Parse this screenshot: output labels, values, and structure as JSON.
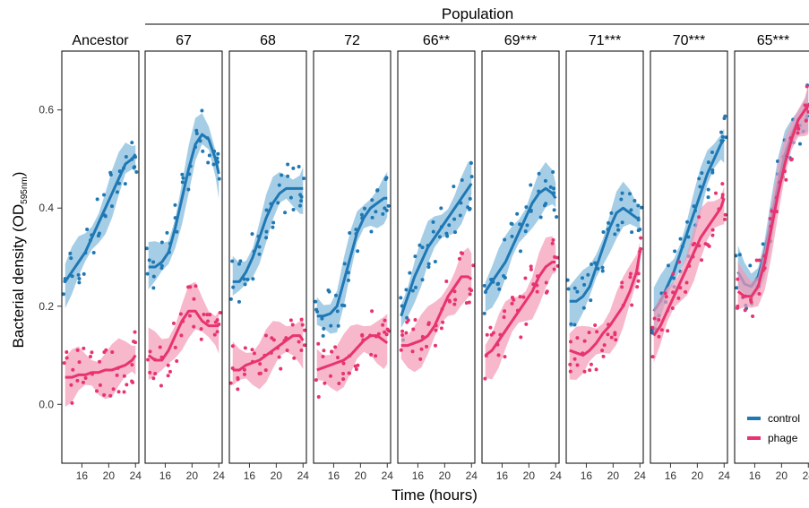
{
  "chart_data": {
    "type": "line",
    "title": "Population",
    "xlabel": "Time (hours)",
    "ylabel_main": "Bacterial density (OD",
    "ylabel_sub": "595nm",
    "ylabel_close": ")",
    "xlim": [
      13,
      24.5
    ],
    "ylim": [
      -0.12,
      0.72
    ],
    "xticks": [
      16,
      20,
      24
    ],
    "yticks": [
      "0.0",
      "0.2",
      "0.4",
      "0.6"
    ],
    "ytick_values": [
      0,
      0.2,
      0.4,
      0.6
    ],
    "colors": {
      "control": "#1f78b4",
      "phage": "#e8336f",
      "control_band": "#7fb9dc",
      "phage_band": "#f39ab6"
    },
    "legend": {
      "position": "bottom-right",
      "entries": [
        "control",
        "phage"
      ]
    },
    "x": [
      13.5,
      14.5,
      15.5,
      16.5,
      17.5,
      18.5,
      19.5,
      20.5,
      21.5,
      22.5,
      23.5,
      24
    ],
    "panels": [
      {
        "label": "Ancestor",
        "control": [
          0.25,
          0.27,
          0.29,
          0.31,
          0.34,
          0.37,
          0.4,
          0.43,
          0.46,
          0.49,
          0.5,
          0.51
        ],
        "phage": [
          0.055,
          0.055,
          0.06,
          0.06,
          0.065,
          0.065,
          0.07,
          0.07,
          0.075,
          0.08,
          0.09,
          0.1
        ]
      },
      {
        "label": "67",
        "control": [
          0.28,
          0.28,
          0.29,
          0.31,
          0.36,
          0.42,
          0.48,
          0.53,
          0.55,
          0.54,
          0.5,
          0.47
        ],
        "phage": [
          0.1,
          0.09,
          0.09,
          0.11,
          0.14,
          0.17,
          0.19,
          0.19,
          0.17,
          0.16,
          0.16,
          0.16
        ]
      },
      {
        "label": "68",
        "control": [
          0.25,
          0.25,
          0.27,
          0.3,
          0.34,
          0.38,
          0.41,
          0.43,
          0.44,
          0.44,
          0.44,
          0.44
        ],
        "phage": [
          0.07,
          0.07,
          0.08,
          0.085,
          0.09,
          0.1,
          0.11,
          0.12,
          0.13,
          0.14,
          0.14,
          0.13
        ]
      },
      {
        "label": "72",
        "control": [
          0.18,
          0.18,
          0.185,
          0.2,
          0.25,
          0.3,
          0.35,
          0.38,
          0.4,
          0.41,
          0.42,
          0.42
        ],
        "phage": [
          0.07,
          0.075,
          0.08,
          0.085,
          0.09,
          0.1,
          0.115,
          0.13,
          0.14,
          0.14,
          0.13,
          0.125
        ]
      },
      {
        "label": "66**",
        "control": [
          0.18,
          0.22,
          0.26,
          0.29,
          0.32,
          0.34,
          0.36,
          0.38,
          0.4,
          0.42,
          0.44,
          0.45
        ],
        "phage": [
          0.12,
          0.12,
          0.125,
          0.13,
          0.14,
          0.16,
          0.19,
          0.22,
          0.24,
          0.26,
          0.26,
          0.255
        ]
      },
      {
        "label": "69***",
        "control": [
          0.23,
          0.25,
          0.27,
          0.29,
          0.32,
          0.35,
          0.38,
          0.41,
          0.43,
          0.44,
          0.43,
          0.42
        ],
        "phage": [
          0.1,
          0.11,
          0.13,
          0.15,
          0.17,
          0.19,
          0.21,
          0.23,
          0.26,
          0.28,
          0.29,
          0.29
        ]
      },
      {
        "label": "71***",
        "control": [
          0.21,
          0.21,
          0.22,
          0.24,
          0.28,
          0.32,
          0.36,
          0.39,
          0.4,
          0.39,
          0.38,
          0.38
        ],
        "phage": [
          0.11,
          0.105,
          0.1,
          0.11,
          0.125,
          0.145,
          0.16,
          0.18,
          0.2,
          0.23,
          0.27,
          0.31
        ]
      },
      {
        "label": "70***",
        "control": [
          0.19,
          0.21,
          0.24,
          0.27,
          0.31,
          0.35,
          0.39,
          0.43,
          0.47,
          0.5,
          0.53,
          0.54
        ],
        "phage": [
          0.14,
          0.16,
          0.19,
          0.22,
          0.25,
          0.28,
          0.31,
          0.34,
          0.36,
          0.38,
          0.4,
          0.42
        ]
      },
      {
        "label": "65***",
        "control": [
          0.27,
          0.245,
          0.24,
          0.26,
          0.31,
          0.38,
          0.45,
          0.51,
          0.55,
          0.58,
          0.6,
          0.61
        ],
        "phage": [
          0.23,
          0.22,
          0.22,
          0.24,
          0.29,
          0.36,
          0.43,
          0.49,
          0.54,
          0.58,
          0.6,
          0.61
        ]
      }
    ]
  }
}
